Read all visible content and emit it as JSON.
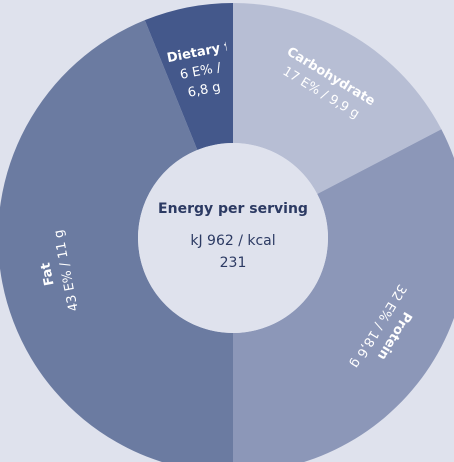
{
  "chart_data": {
    "type": "donut",
    "center_title": "Energy per serving",
    "center_text": "kJ 962 / kcal 231",
    "categories": [
      "Carbohydrate",
      "Protein",
      "Fat",
      "Dietary fibre"
    ],
    "values": [
      17,
      32,
      43,
      6
    ],
    "value_labels": [
      "17 E% / 9,9 g",
      "32 E% / 18,6 g",
      "43 E% / 11 g",
      "6 E% / 6,8 g"
    ],
    "colors": [
      "#b7bed4",
      "#8c97b8",
      "#6b7ba1",
      "#44588b"
    ]
  }
}
